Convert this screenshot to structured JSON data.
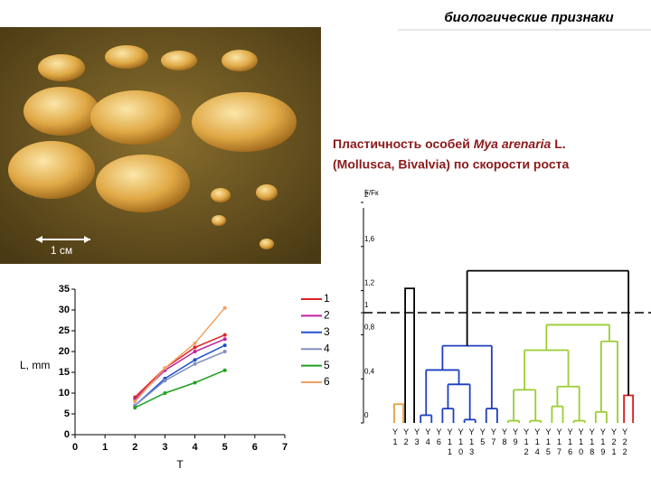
{
  "title": "биологические признаки",
  "subtitle": {
    "line1": [
      "Пластичность особей ",
      "Mya arenaria",
      " L."
    ],
    "line2": "(Mollusca, Bivalvia) по скорости роста"
  },
  "photo": {
    "scale_label": "1 см"
  },
  "chart_data": [
    {
      "type": "line",
      "xlabel": "T",
      "ylabel": "L, mm",
      "x": [
        2,
        3,
        4,
        5
      ],
      "xlim": [
        0,
        7
      ],
      "xticks": [
        0,
        1,
        2,
        3,
        4,
        5,
        6,
        7
      ],
      "ylim": [
        0,
        35
      ],
      "yticks": [
        0,
        5,
        10,
        15,
        20,
        25,
        30,
        35
      ],
      "legend": "right",
      "series": [
        {
          "name": "1",
          "color": "#e02020",
          "values": [
            9,
            16,
            21,
            24
          ]
        },
        {
          "name": "2",
          "color": "#c020a0",
          "values": [
            8.5,
            15.5,
            20,
            23
          ]
        },
        {
          "name": "3",
          "color": "#2050d0",
          "values": [
            7,
            13.5,
            18,
            21.5
          ]
        },
        {
          "name": "4",
          "color": "#8090c0",
          "values": [
            7,
            13,
            17,
            20
          ]
        },
        {
          "name": "5",
          "color": "#20a020",
          "values": [
            6.5,
            10,
            12.5,
            15.5
          ]
        },
        {
          "name": "6",
          "color": "#f0a060",
          "values": [
            8,
            16,
            22,
            30.5
          ]
        }
      ]
    },
    {
      "type": "dendrogram",
      "ylabel": "F/Fк",
      "ylim": [
        0,
        2
      ],
      "yticks": [
        0,
        {
          "value": 0.4,
          "label": "0,4"
        },
        {
          "value": 0.8,
          "label": "0,8"
        },
        1,
        {
          "value": 1.2,
          "label": "1,2"
        },
        {
          "value": 1.6,
          "label": "1,6"
        },
        2
      ],
      "threshold": 1,
      "leaves": [
        "Y1",
        "Y2",
        "Y3",
        "Y4",
        "Y6",
        "Y11",
        "Y10",
        "Y13",
        "Y5",
        "Y7",
        "Y8",
        "Y9",
        "Y12",
        "Y14",
        "Y15",
        "Y17",
        "Y16",
        "Y10",
        "Y18",
        "Y19",
        "Y21",
        "Y22"
      ],
      "clusters": [
        {
          "height": 0.17,
          "color": "#e8a040",
          "children": [
            0
          ]
        },
        {
          "height": 1.22,
          "color": "#000000",
          "children": [
            1
          ]
        },
        {
          "height": 1.38,
          "color": "#000000",
          "children": [
            {
              "height": 0.7,
              "color": "#1f3fbf",
              "children": [
                {
                  "height": 0.48,
                  "children": [
                    {
                      "height": 0.07,
                      "children": [
                        2,
                        3
                      ]
                    },
                    {
                      "height": 0.35,
                      "children": [
                        {
                          "height": 0.13,
                          "children": [
                            4,
                            5
                          ]
                        },
                        {
                          "height": 0.03,
                          "children": [
                            6,
                            7
                          ]
                        }
                      ]
                    }
                  ]
                },
                {
                  "height": 0.13,
                  "children": [
                    8,
                    9
                  ]
                }
              ]
            },
            {
              "height": 0.25,
              "color": "#d42020",
              "children": [
                21
              ]
            }
          ]
        },
        {
          "height": 0.89,
          "color": "#9acd32",
          "children": [
            {
              "height": 0.66,
              "children": [
                {
                  "height": 0.3,
                  "children": [
                    {
                      "height": 0.02,
                      "children": [
                        10,
                        11
                      ]
                    },
                    {
                      "height": 0.02,
                      "children": [
                        12,
                        13
                      ]
                    }
                  ]
                },
                {
                  "height": 0.33,
                  "children": [
                    {
                      "height": 0.15,
                      "children": [
                        14,
                        15
                      ]
                    },
                    {
                      "height": 0.02,
                      "children": [
                        16,
                        17
                      ]
                    }
                  ]
                }
              ]
            },
            {
              "height": 0.74,
              "children": [
                {
                  "height": 0.1,
                  "children": [
                    18,
                    19
                  ]
                },
                20
              ]
            }
          ]
        }
      ]
    }
  ]
}
